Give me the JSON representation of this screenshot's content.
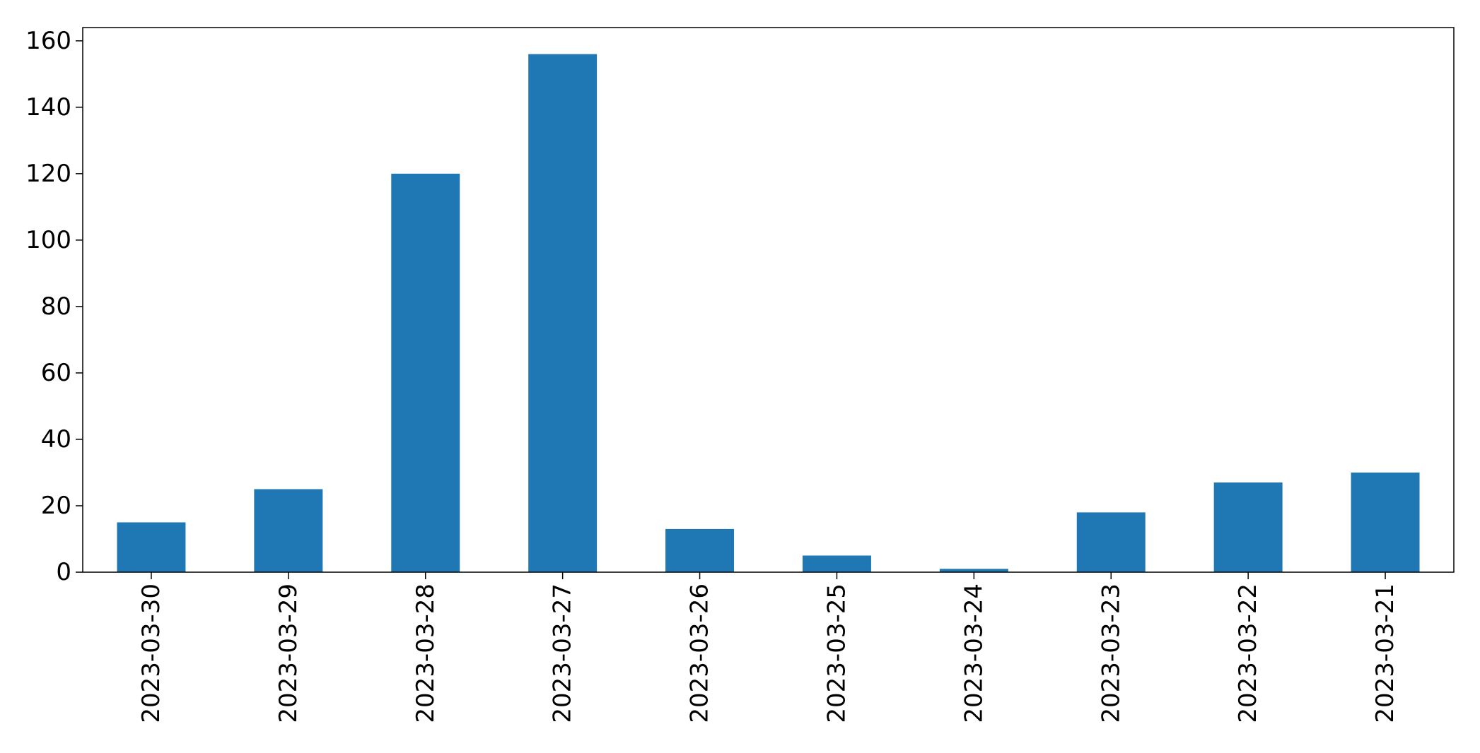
{
  "chart_data": {
    "type": "bar",
    "title": "",
    "xlabel": "",
    "ylabel": "",
    "categories": [
      "2023-03-30",
      "2023-03-29",
      "2023-03-28",
      "2023-03-27",
      "2023-03-26",
      "2023-03-25",
      "2023-03-24",
      "2023-03-23",
      "2023-03-22",
      "2023-03-21"
    ],
    "values": [
      15,
      25,
      120,
      156,
      13,
      5,
      1,
      18,
      27,
      30
    ],
    "ylim": [
      0,
      164
    ],
    "yticks": [
      0,
      20,
      40,
      60,
      80,
      100,
      120,
      140,
      160
    ],
    "bar_color": "#1f77b4",
    "grid": false,
    "legend": "none"
  }
}
